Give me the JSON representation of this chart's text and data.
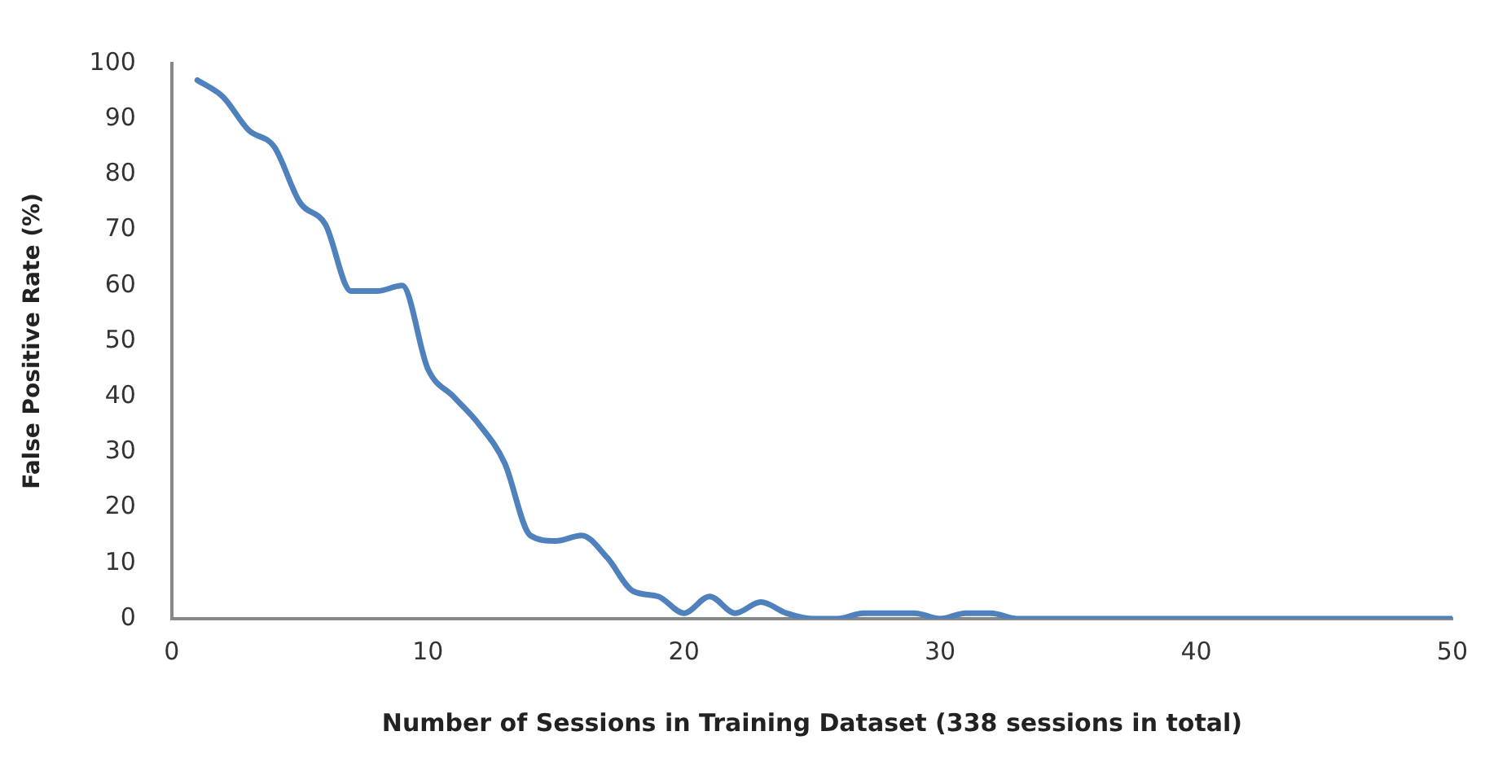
{
  "chart_data": {
    "type": "line",
    "xlabel": "Number of Sessions in Training Dataset (338 sessions in total)",
    "ylabel": "False Positive Rate (%)",
    "x": [
      1,
      2,
      3,
      4,
      5,
      6,
      7,
      8,
      9,
      10,
      11,
      12,
      13,
      14,
      15,
      16,
      17,
      18,
      19,
      20,
      21,
      22,
      23,
      24,
      25,
      26,
      27,
      28,
      29,
      30,
      31,
      32,
      33,
      34,
      35,
      36,
      37,
      38,
      39,
      40,
      41,
      42,
      43,
      44,
      45,
      46,
      47,
      48,
      49,
      50
    ],
    "series": [
      {
        "color": "#4f81bd",
        "values": [
          97,
          94,
          88,
          85,
          75,
          71,
          59,
          59,
          60,
          45,
          40,
          35,
          28,
          15,
          14,
          15,
          11,
          5,
          4,
          1,
          4,
          1,
          3,
          1,
          0,
          0,
          1,
          1,
          1,
          0,
          1,
          1,
          0,
          0,
          0,
          0,
          0,
          0,
          0,
          0,
          0,
          0,
          0,
          0,
          0,
          0,
          0,
          0,
          0,
          0
        ]
      }
    ],
    "xlim": [
      0,
      50
    ],
    "xticks": [
      0,
      10,
      20,
      30,
      40,
      50
    ],
    "ylim": [
      0,
      100
    ],
    "yticks": [
      0,
      10,
      20,
      30,
      40,
      50,
      60,
      70,
      80,
      90,
      100
    ],
    "grid": false,
    "legend": false,
    "marker": "none",
    "line_style": "solid"
  }
}
